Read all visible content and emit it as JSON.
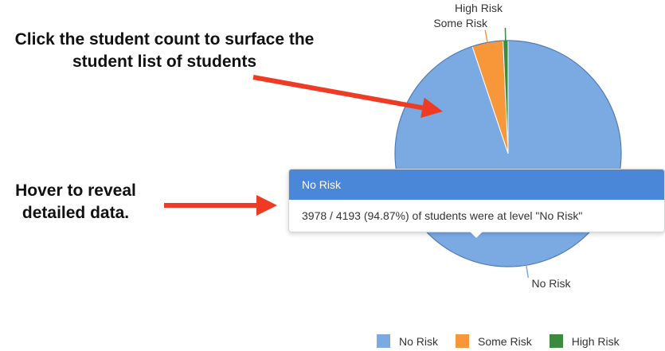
{
  "annotations": {
    "click_text": "Click the student count to surface the student list of students",
    "hover_text": "Hover to reveal detailed data."
  },
  "tooltip": {
    "title": "No Risk",
    "body": "3978 / 4193 (94.87%) of students were at level \"No Risk\""
  },
  "colors": {
    "no_risk": "#7baae3",
    "some_risk": "#f7973a",
    "high_risk": "#3b8a3e",
    "tooltip_header": "#4a87d8",
    "arrow": "#ef3b24"
  },
  "chart_data": {
    "type": "pie",
    "title": "",
    "total": 4193,
    "slices": [
      {
        "label": "No Risk",
        "value": 3978,
        "percent": 94.87
      },
      {
        "label": "Some Risk",
        "value": 185
      },
      {
        "label": "High Risk",
        "value": 30
      }
    ],
    "legend": [
      "No Risk",
      "Some Risk",
      "High Risk"
    ],
    "legend_position": "bottom-right"
  }
}
